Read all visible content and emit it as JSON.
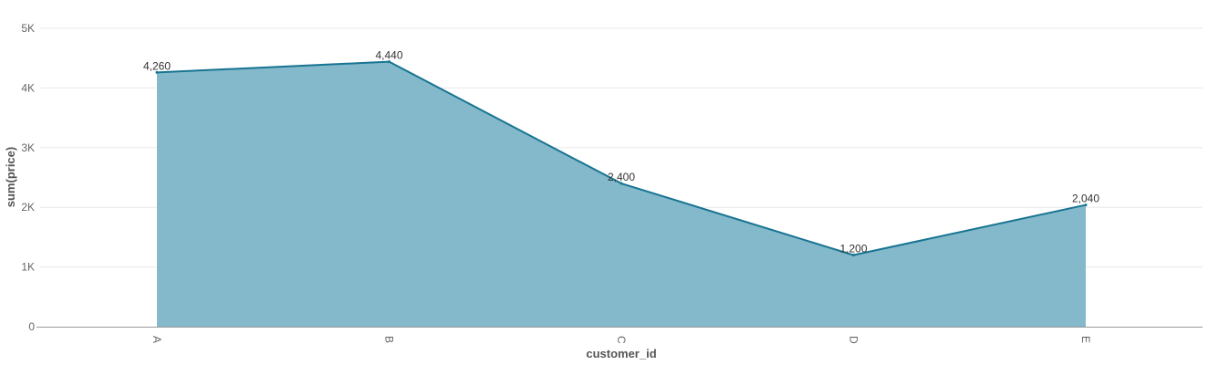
{
  "chart_data": {
    "type": "area",
    "categories": [
      "A",
      "B",
      "C",
      "D",
      "E"
    ],
    "values": [
      4260,
      4440,
      2400,
      1200,
      2040
    ],
    "data_labels": [
      "4,260",
      "4,440",
      "2,400",
      "1,200",
      "2,040"
    ],
    "xlabel": "customer_id",
    "ylabel": "sum(price)",
    "ylim": [
      0,
      5000
    ],
    "y_ticks": [
      0,
      1000,
      2000,
      3000,
      4000,
      5000
    ],
    "y_tick_labels": [
      "0",
      "1K",
      "2K",
      "3K",
      "4K",
      "5K"
    ],
    "grid": true,
    "colors": {
      "fill": "#83b9ca",
      "line": "#187492",
      "grid": "#e8e8e8",
      "axis": "#999999"
    }
  }
}
